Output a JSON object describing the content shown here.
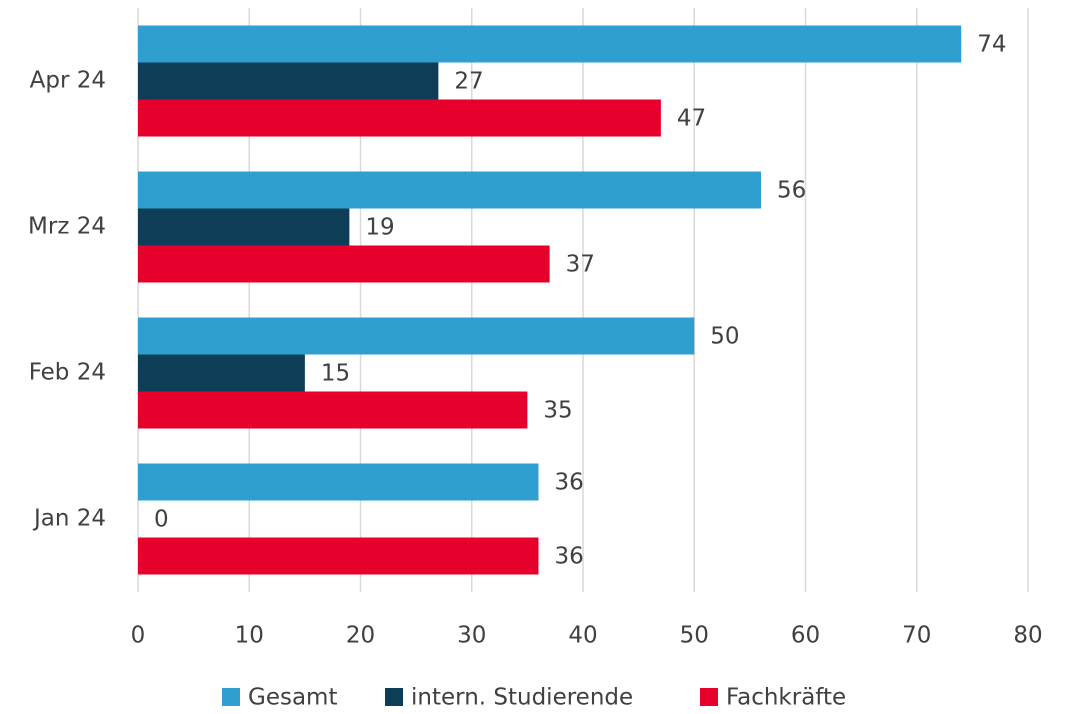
{
  "chart_data": {
    "type": "hbar",
    "categories": [
      "Apr 24",
      "Mrz 24",
      "Feb 24",
      "Jan 24"
    ],
    "series": [
      {
        "name": "Gesamt",
        "color": "#2e9fcf",
        "values": [
          74,
          56,
          50,
          36
        ]
      },
      {
        "name": "intern. Studierende",
        "color": "#0e3d57",
        "values": [
          27,
          19,
          15,
          0
        ]
      },
      {
        "name": "Fachkräfte",
        "color": "#e8002d",
        "values": [
          47,
          37,
          35,
          36
        ]
      }
    ],
    "xlim": [
      0,
      80
    ],
    "xticks": [
      0,
      10,
      20,
      30,
      40,
      50,
      60,
      70,
      80
    ],
    "grid": true,
    "legend": "bottom"
  }
}
